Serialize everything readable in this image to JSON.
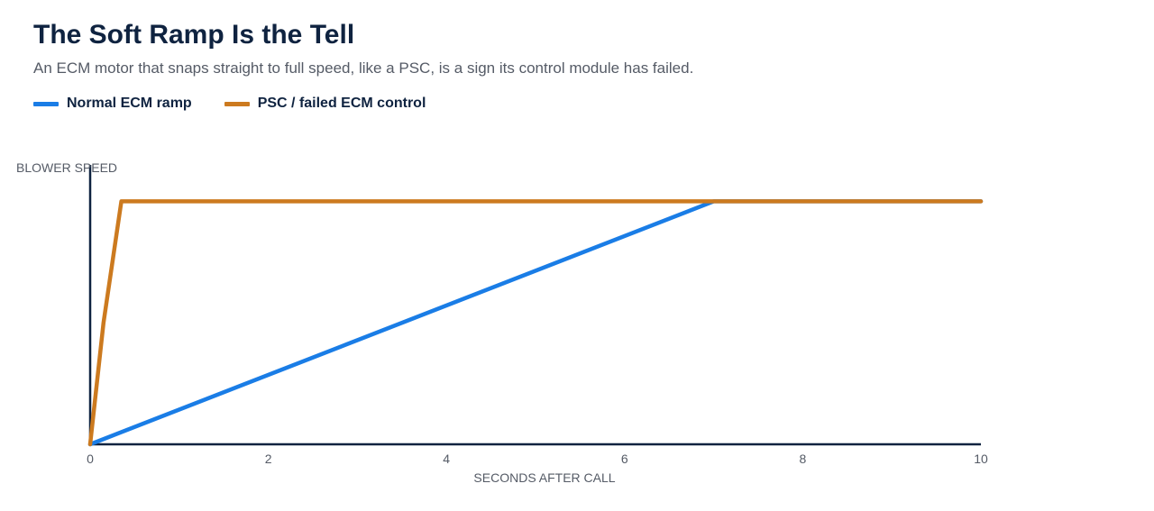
{
  "chart_data": {
    "type": "line",
    "title": "The Soft Ramp Is the Tell",
    "subtitle": "An ECM motor that snaps straight to full speed, like a PSC, is a sign its control module has failed.",
    "xlabel": "SECONDS AFTER CALL",
    "ylabel": "BLOWER SPEED",
    "xlim": [
      0,
      10
    ],
    "ylim": [
      0,
      1.15
    ],
    "x_ticks": [
      0,
      2,
      4,
      6,
      8,
      10
    ],
    "x_tick_labels": [
      "0",
      "2",
      "4",
      "6",
      "8",
      "10"
    ],
    "grid": false,
    "legend_position": "top-left",
    "series": [
      {
        "name": "Normal ECM ramp",
        "color": "#1a7de6",
        "x": [
          0,
          7,
          10
        ],
        "y": [
          0,
          1,
          1
        ]
      },
      {
        "name": "PSC / failed ECM control",
        "color": "#cc7a1f",
        "x": [
          0,
          0.15,
          0.35,
          10
        ],
        "y": [
          0,
          0.5,
          1,
          1
        ]
      }
    ]
  }
}
